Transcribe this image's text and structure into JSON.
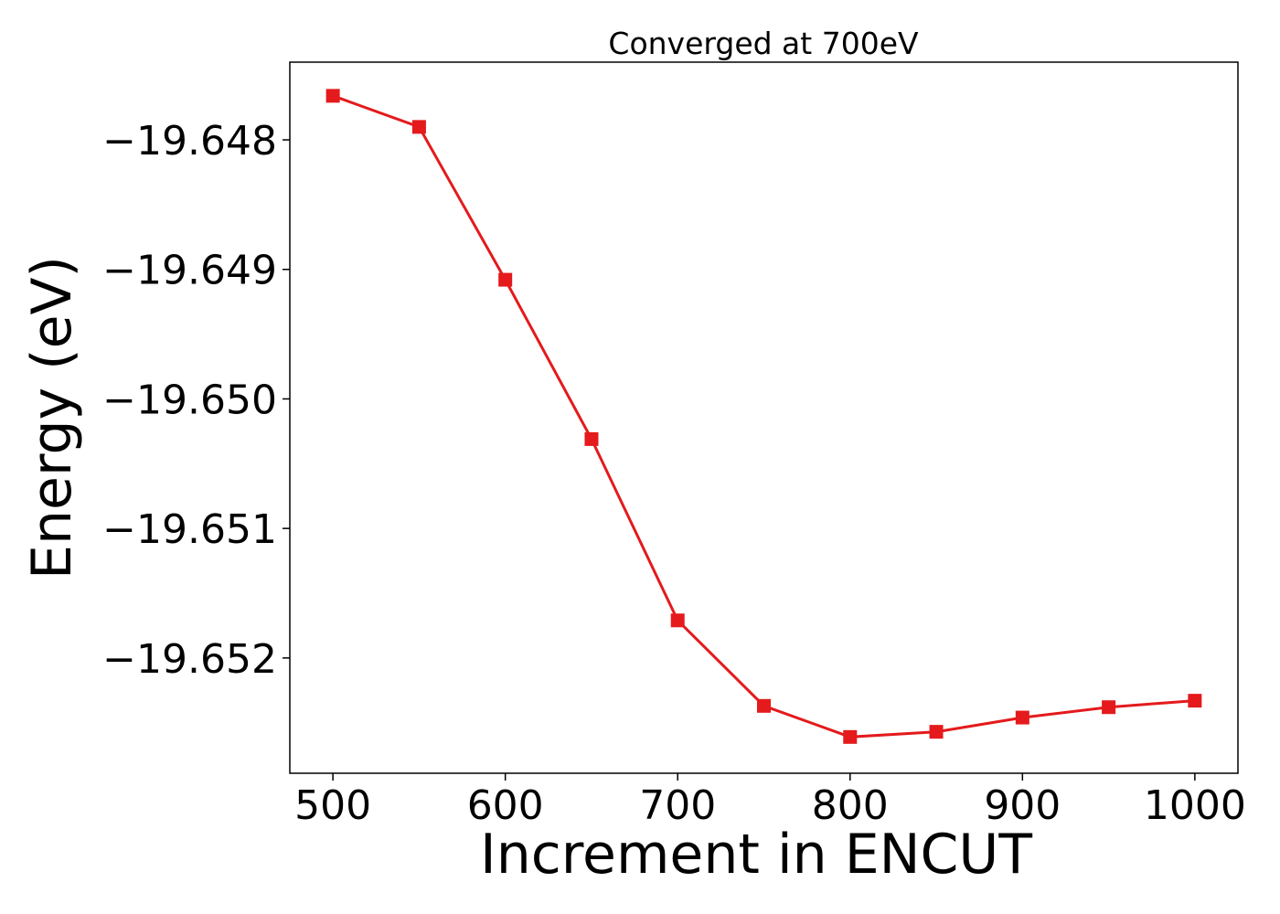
{
  "chart_data": {
    "type": "line",
    "title": "Converged at 700eV",
    "xlabel": "Increment in ENCUT",
    "ylabel": "Energy (eV)",
    "x": [
      500,
      550,
      600,
      650,
      700,
      750,
      800,
      850,
      900,
      950,
      1000
    ],
    "y": [
      -19.64766,
      -19.6479,
      -19.64908,
      -19.65031,
      -19.65171,
      -19.65237,
      -19.65261,
      -19.65257,
      -19.65246,
      -19.65238,
      -19.65233
    ],
    "xlim": [
      475,
      1025
    ],
    "ylim": [
      -19.65289,
      -19.6474
    ],
    "xticks": [
      500,
      600,
      700,
      800,
      900,
      1000
    ],
    "xtick_labels": [
      "500",
      "600",
      "700",
      "800",
      "900",
      "1000"
    ],
    "yticks": [
      -19.648,
      -19.649,
      -19.65,
      -19.651,
      -19.652
    ],
    "ytick_labels": [
      "−19.648",
      "−19.649",
      "−19.650",
      "−19.651",
      "−19.652"
    ],
    "grid": false,
    "line_color": "#e41a1c",
    "marker": "square"
  }
}
